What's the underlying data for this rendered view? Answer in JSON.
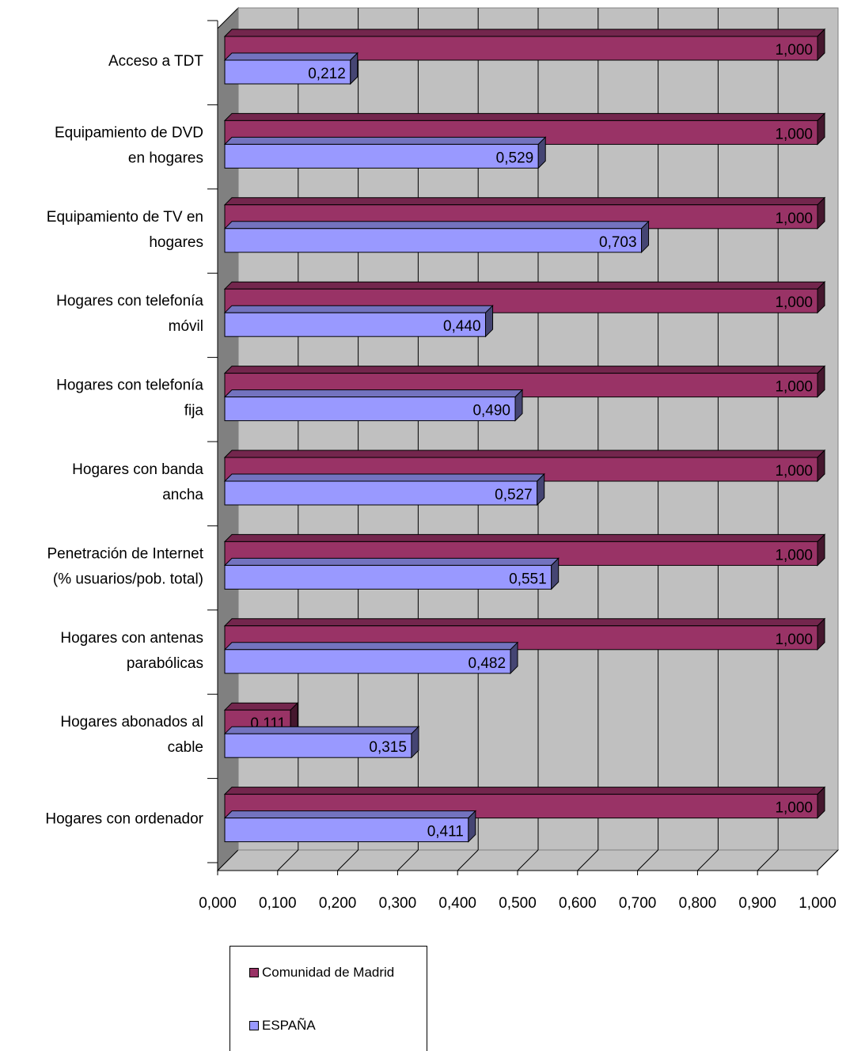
{
  "chart_data": {
    "type": "bar",
    "orientation": "horizontal",
    "categories": [
      "Acceso a TDT",
      "Equipamiento de DVD en hogares",
      "Equipamiento de TV en hogares",
      "Hogares con telefonía móvil",
      "Hogares con telefonía fija",
      "Hogares con banda ancha",
      "Penetración de Internet (% usuarios/pob. total)",
      "Hogares con antenas parabólicas",
      "Hogares abonados al cable",
      "Hogares con ordenador"
    ],
    "category_lines": [
      [
        "Acceso a TDT"
      ],
      [
        "Equipamiento de DVD",
        "en hogares"
      ],
      [
        "Equipamiento de TV en",
        "hogares"
      ],
      [
        "Hogares con telefonía",
        "móvil"
      ],
      [
        "Hogares con telefonía",
        "fija"
      ],
      [
        "Hogares con banda",
        "ancha"
      ],
      [
        "Penetración de Internet",
        "(% usuarios/pob. total)"
      ],
      [
        "Hogares con antenas",
        "parabólicas"
      ],
      [
        "Hogares abonados al",
        "cable"
      ],
      [
        "Hogares con ordenador"
      ]
    ],
    "series": [
      {
        "name": "Comunidad de Madrid",
        "color": "#993366",
        "values": [
          1.0,
          1.0,
          1.0,
          1.0,
          1.0,
          1.0,
          1.0,
          1.0,
          0.111,
          1.0
        ],
        "labels": [
          "1,000",
          "1,000",
          "1,000",
          "1,000",
          "1,000",
          "1,000",
          "1,000",
          "1,000",
          "0,111",
          "1,000"
        ]
      },
      {
        "name": "ESPAÑA",
        "color": "#9999FF",
        "values": [
          0.212,
          0.529,
          0.703,
          0.44,
          0.49,
          0.527,
          0.551,
          0.482,
          0.315,
          0.411
        ],
        "labels": [
          "0,212",
          "0,529",
          "0,703",
          "0,440",
          "0,490",
          "0,527",
          "0,551",
          "0,482",
          "0,315",
          "0,411"
        ]
      }
    ],
    "xlim": [
      0,
      1
    ],
    "x_ticks": [
      "0,000",
      "0,100",
      "0,200",
      "0,300",
      "0,400",
      "0,500",
      "0,600",
      "0,700",
      "0,800",
      "0,900",
      "1,000"
    ],
    "grid": true,
    "wall_color": "#C0C0C0",
    "legend_position": "bottom"
  },
  "legend": {
    "items": [
      {
        "label": "Comunidad de Madrid",
        "color": "#993366"
      },
      {
        "label": "ESPAÑA",
        "color": "#9999FF"
      }
    ]
  }
}
